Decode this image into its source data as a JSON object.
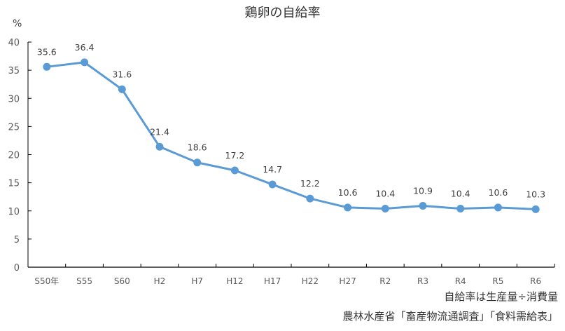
{
  "chart_data": {
    "type": "line",
    "title": "鶏卵の自給率",
    "ylabel": "%",
    "xlabel": "",
    "categories": [
      "S50年",
      "S55",
      "S60",
      "H2",
      "H7",
      "H12",
      "H17",
      "H22",
      "H27",
      "R2",
      "R3",
      "R4",
      "R5",
      "R6"
    ],
    "series": [
      {
        "name": "鶏卵の自給率",
        "values": [
          35.6,
          36.4,
          31.6,
          21.4,
          18.6,
          17.2,
          14.7,
          12.2,
          10.6,
          10.4,
          10.9,
          10.4,
          10.6,
          10.3
        ],
        "color": "#5b9bd5"
      }
    ],
    "ylim": [
      0,
      40
    ],
    "yticks": [
      0,
      5,
      10,
      15,
      20,
      25,
      30,
      35,
      40
    ],
    "grid": false,
    "legend": "none",
    "data_labels": true
  },
  "notes": {
    "formula": "自給率は生産量÷消費量",
    "source": "農林水産省「畜産物流通調査」「食料需給表」"
  }
}
